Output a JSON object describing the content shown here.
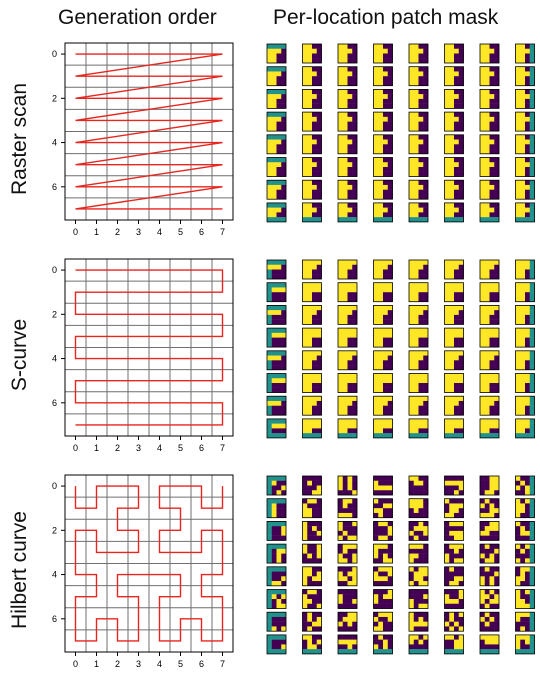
{
  "column_titles": {
    "order": "Generation order",
    "mask": "Per-location patch mask"
  },
  "row_titles": [
    "Raster scan",
    "S-curve",
    "Hilbert curve"
  ],
  "colors": {
    "path": "#e8251e",
    "grid": "#6f6f6f",
    "mask_yellow": "#fde725",
    "mask_purple": "#440154",
    "mask_teal": "#21918c"
  },
  "chart_data": [
    {
      "type": "line",
      "title": "Raster scan",
      "xticks": [
        0,
        1,
        2,
        3,
        4,
        5,
        6,
        7
      ],
      "yticks": [
        0,
        2,
        4,
        6
      ],
      "xlim": [
        -0.5,
        7.5
      ],
      "ylim": [
        7.5,
        -0.5
      ],
      "path": [
        [
          0,
          0
        ],
        [
          7,
          0
        ],
        [
          0,
          1
        ],
        [
          7,
          1
        ],
        [
          0,
          2
        ],
        [
          7,
          2
        ],
        [
          0,
          3
        ],
        [
          7,
          3
        ],
        [
          0,
          4
        ],
        [
          7,
          4
        ],
        [
          0,
          5
        ],
        [
          7,
          5
        ],
        [
          0,
          6
        ],
        [
          7,
          6
        ],
        [
          0,
          7
        ],
        [
          7,
          7
        ]
      ]
    },
    {
      "type": "line",
      "title": "S-curve",
      "xticks": [
        0,
        1,
        2,
        3,
        4,
        5,
        6,
        7
      ],
      "yticks": [
        0,
        2,
        4,
        6
      ],
      "xlim": [
        -0.5,
        7.5
      ],
      "ylim": [
        7.5,
        -0.5
      ],
      "path": [
        [
          0,
          0
        ],
        [
          7,
          0
        ],
        [
          7,
          1
        ],
        [
          0,
          1
        ],
        [
          0,
          2
        ],
        [
          7,
          2
        ],
        [
          7,
          3
        ],
        [
          0,
          3
        ],
        [
          0,
          4
        ],
        [
          7,
          4
        ],
        [
          7,
          5
        ],
        [
          0,
          5
        ],
        [
          0,
          6
        ],
        [
          7,
          6
        ],
        [
          7,
          7
        ],
        [
          0,
          7
        ]
      ]
    },
    {
      "type": "line",
      "title": "Hilbert curve",
      "xticks": [
        0,
        1,
        2,
        3,
        4,
        5,
        6,
        7
      ],
      "yticks": [
        0,
        2,
        4,
        6
      ],
      "xlim": [
        -0.5,
        7.5
      ],
      "ylim": [
        7.5,
        -0.5
      ],
      "path": [
        [
          0,
          0
        ],
        [
          0,
          1
        ],
        [
          1,
          1
        ],
        [
          1,
          0
        ],
        [
          2,
          0
        ],
        [
          3,
          0
        ],
        [
          3,
          1
        ],
        [
          2,
          1
        ],
        [
          2,
          2
        ],
        [
          3,
          2
        ],
        [
          3,
          3
        ],
        [
          2,
          3
        ],
        [
          1,
          3
        ],
        [
          1,
          2
        ],
        [
          0,
          2
        ],
        [
          0,
          3
        ],
        [
          0,
          4
        ],
        [
          1,
          4
        ],
        [
          1,
          5
        ],
        [
          0,
          5
        ],
        [
          0,
          6
        ],
        [
          0,
          7
        ],
        [
          1,
          7
        ],
        [
          1,
          6
        ],
        [
          2,
          6
        ],
        [
          2,
          7
        ],
        [
          3,
          7
        ],
        [
          3,
          6
        ],
        [
          3,
          5
        ],
        [
          2,
          5
        ],
        [
          2,
          4
        ],
        [
          3,
          4
        ],
        [
          4,
          4
        ],
        [
          5,
          4
        ],
        [
          5,
          5
        ],
        [
          4,
          5
        ],
        [
          4,
          6
        ],
        [
          4,
          7
        ],
        [
          5,
          7
        ],
        [
          5,
          6
        ],
        [
          6,
          6
        ],
        [
          6,
          7
        ],
        [
          7,
          7
        ],
        [
          7,
          6
        ],
        [
          7,
          5
        ],
        [
          6,
          5
        ],
        [
          6,
          4
        ],
        [
          7,
          4
        ],
        [
          7,
          3
        ],
        [
          7,
          2
        ],
        [
          6,
          2
        ],
        [
          6,
          3
        ],
        [
          5,
          3
        ],
        [
          4,
          3
        ],
        [
          4,
          2
        ],
        [
          5,
          2
        ],
        [
          5,
          1
        ],
        [
          4,
          1
        ],
        [
          4,
          0
        ],
        [
          5,
          0
        ],
        [
          6,
          0
        ],
        [
          6,
          1
        ],
        [
          7,
          1
        ],
        [
          7,
          0
        ]
      ]
    }
  ],
  "mask_grid": {
    "rows": 8,
    "cols": 8,
    "tile_levels": [
      "yellow = 1 (visible)",
      "purple = 0 (masked)",
      "teal = padding"
    ]
  }
}
